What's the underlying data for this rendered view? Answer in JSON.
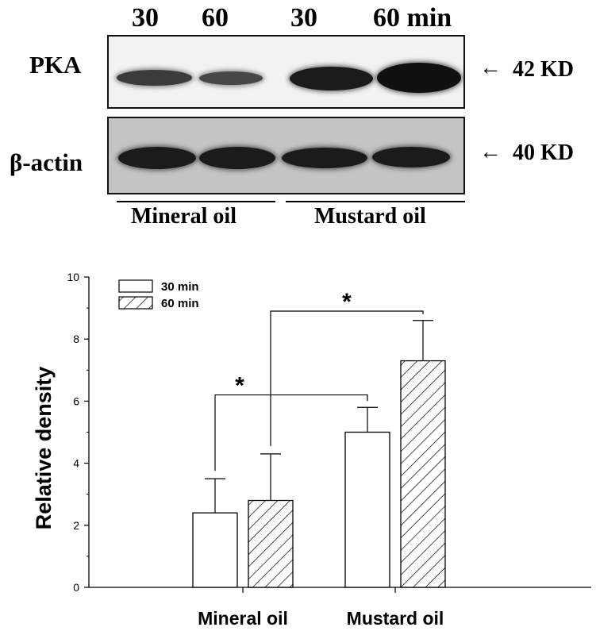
{
  "blot": {
    "lane_labels": [
      "30",
      "60",
      "30",
      "60 min"
    ],
    "rows": [
      {
        "label": "PKA",
        "marker": "42 KD",
        "band_intensity": [
          0.55,
          0.45,
          0.85,
          0.95
        ]
      },
      {
        "label": "β-actin",
        "marker": "40 KD",
        "band_intensity": [
          0.85,
          0.85,
          0.85,
          0.85
        ]
      }
    ],
    "groups": [
      "Mineral oil",
      "Mustard oil"
    ],
    "arrow_glyph": "←"
  },
  "chart_data": {
    "type": "bar",
    "categories": [
      "Mineral oil",
      "Mustard oil"
    ],
    "series": [
      {
        "name": "30 min",
        "pattern": "open",
        "values": [
          2.4,
          5.0
        ],
        "errors": [
          1.1,
          0.8
        ]
      },
      {
        "name": "60 min",
        "pattern": "hatched",
        "values": [
          2.8,
          7.3
        ],
        "errors": [
          1.5,
          1.3
        ]
      }
    ],
    "xlabel": "",
    "ylabel": "Relative density",
    "ylim": [
      0,
      10
    ],
    "yticks": [
      "0",
      "2",
      "4",
      "6",
      "8",
      "10"
    ],
    "legend_position": "top-left",
    "grid": false,
    "significance": [
      {
        "label": "*",
        "from": "Mineral oil 30 min",
        "to": "Mustard oil 30 min"
      },
      {
        "label": "*",
        "from": "Mineral oil 60 min",
        "to": "Mustard oil 60 min"
      }
    ],
    "colors": {
      "bar_fill": "#ffffff",
      "stroke": "#000000"
    }
  }
}
